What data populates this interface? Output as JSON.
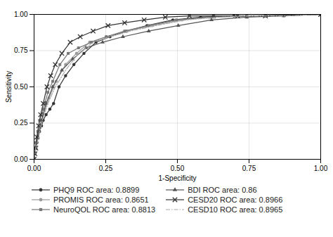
{
  "chart_data": {
    "type": "line",
    "xlabel": "1-Specificity",
    "ylabel": "Sensitivity",
    "xlim": [
      0.0,
      1.0
    ],
    "ylim": [
      0.0,
      1.0
    ],
    "xticks": [
      {
        "value": 0.0,
        "label": "0.00"
      },
      {
        "value": 0.25,
        "label": "0.25"
      },
      {
        "value": 0.5,
        "label": "0.50"
      },
      {
        "value": 0.75,
        "label": "0.75"
      },
      {
        "value": 1.0,
        "label": "1.00"
      }
    ],
    "yticks": [
      {
        "value": 0.0,
        "label": "0.00"
      },
      {
        "value": 0.25,
        "label": "0.25"
      },
      {
        "value": 0.5,
        "label": "0.50"
      },
      {
        "value": 0.75,
        "label": "0.75"
      },
      {
        "value": 1.0,
        "label": "1.00"
      }
    ],
    "grid": true,
    "legend": "bottom",
    "series": [
      {
        "name": "PHQ9 ROC area: 0.8899",
        "color": "#333333",
        "marker": "circle",
        "line_style": "solid",
        "x": [
          0.0,
          0.003,
          0.006,
          0.01,
          0.013,
          0.019,
          0.026,
          0.032,
          0.042,
          0.055,
          0.068,
          0.087,
          0.11,
          0.139,
          0.174,
          0.216,
          0.265,
          0.323,
          0.394,
          0.484,
          0.581,
          0.697,
          0.807,
          1.0
        ],
        "values": [
          0.0,
          0.038,
          0.077,
          0.115,
          0.154,
          0.192,
          0.231,
          0.269,
          0.308,
          0.346,
          0.385,
          0.5,
          0.577,
          0.654,
          0.731,
          0.808,
          0.846,
          0.885,
          0.923,
          0.962,
          0.981,
          0.99,
          0.99,
          1.0
        ]
      },
      {
        "name": "PROMIS ROC area: 0.8651",
        "color": "#999999",
        "marker": "circle",
        "line_style": "solid",
        "x": [
          0.0,
          0.006,
          0.016,
          0.032,
          0.052,
          0.077,
          0.11,
          0.148,
          0.194,
          0.252,
          0.323,
          0.413,
          0.516,
          0.626,
          0.742,
          0.871,
          1.0
        ],
        "values": [
          0.0,
          0.077,
          0.192,
          0.308,
          0.423,
          0.538,
          0.654,
          0.731,
          0.808,
          0.846,
          0.885,
          0.923,
          0.962,
          0.981,
          0.99,
          0.99,
          1.0
        ]
      },
      {
        "name": "NeuroQOL ROC area: 0.8813",
        "color": "#777777",
        "marker": "square",
        "line_style": "solid",
        "x": [
          0.0,
          0.003,
          0.006,
          0.013,
          0.019,
          0.032,
          0.048,
          0.065,
          0.09,
          0.119,
          0.155,
          0.2,
          0.252,
          0.316,
          0.4,
          0.497,
          0.613,
          0.742,
          1.0
        ],
        "values": [
          0.0,
          0.038,
          0.115,
          0.192,
          0.269,
          0.346,
          0.462,
          0.538,
          0.654,
          0.731,
          0.769,
          0.808,
          0.846,
          0.885,
          0.923,
          0.962,
          0.981,
          0.99,
          1.0
        ]
      },
      {
        "name": "BDI ROC area: 0.86",
        "color": "#555555",
        "marker": "triangle",
        "line_style": "solid",
        "x": [
          0.0,
          0.006,
          0.013,
          0.026,
          0.042,
          0.065,
          0.097,
          0.135,
          0.181,
          0.239,
          0.31,
          0.4,
          0.503,
          0.619,
          0.742,
          0.871,
          1.0
        ],
        "values": [
          0.0,
          0.077,
          0.154,
          0.269,
          0.385,
          0.5,
          0.615,
          0.692,
          0.769,
          0.808,
          0.846,
          0.885,
          0.923,
          0.962,
          0.981,
          0.99,
          1.0
        ]
      },
      {
        "name": "CESD20 ROC area: 0.8966",
        "color": "#333333",
        "marker": "x",
        "line_style": "solid",
        "x": [
          0.0,
          0.003,
          0.006,
          0.01,
          0.016,
          0.023,
          0.032,
          0.045,
          0.058,
          0.074,
          0.097,
          0.126,
          0.161,
          0.206,
          0.258,
          0.316,
          0.384,
          0.458,
          0.542,
          0.626,
          0.71,
          0.807,
          1.0
        ],
        "values": [
          0.0,
          0.038,
          0.077,
          0.154,
          0.231,
          0.308,
          0.385,
          0.5,
          0.577,
          0.654,
          0.731,
          0.808,
          0.846,
          0.885,
          0.923,
          0.942,
          0.962,
          0.981,
          0.99,
          0.99,
          0.99,
          0.99,
          1.0
        ]
      },
      {
        "name": "CESD10 ROC area: 0.8965",
        "color": "#aaaaaa",
        "marker": "none",
        "line_style": "dashdot",
        "x": [
          0.0,
          0.006,
          0.016,
          0.029,
          0.048,
          0.074,
          0.11,
          0.155,
          0.206,
          0.265,
          0.336,
          0.426,
          0.529,
          0.639,
          0.755,
          0.884,
          1.0
        ],
        "values": [
          0.0,
          0.077,
          0.154,
          0.269,
          0.385,
          0.5,
          0.615,
          0.731,
          0.808,
          0.846,
          0.885,
          0.923,
          0.962,
          0.981,
          0.99,
          0.99,
          1.0
        ]
      }
    ]
  }
}
